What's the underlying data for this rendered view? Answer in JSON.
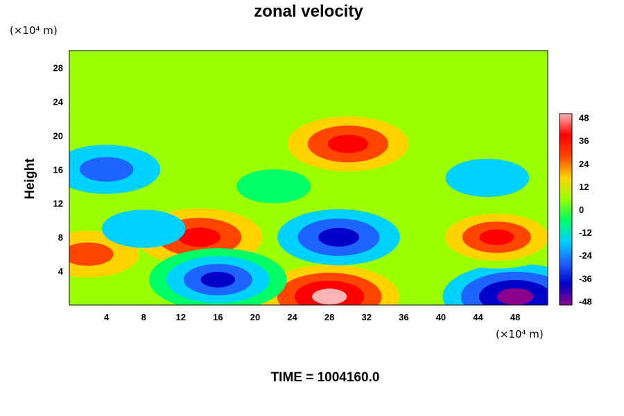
{
  "chart_data": {
    "type": "heatmap",
    "title": "zonal velocity",
    "ylabel": "Height",
    "xlabel": "",
    "x_unit": "(×10⁴ m)",
    "y_unit": "(×10⁴ m)",
    "xlim": [
      0,
      51.5
    ],
    "ylim": [
      0,
      30
    ],
    "x_ticks": [
      "4",
      "8",
      "12",
      "16",
      "20",
      "24",
      "28",
      "32",
      "36",
      "40",
      "44",
      "48"
    ],
    "y_ticks": [
      "4",
      "8",
      "12",
      "16",
      "20",
      "24",
      "28"
    ],
    "colorbar": {
      "range": [
        -50,
        50
      ],
      "ticks": [
        "48",
        "36",
        "24",
        "12",
        "0",
        "-12",
        "-24",
        "-36",
        "-48"
      ],
      "colors": [
        "#8b008b",
        "#0000c8",
        "#1e64ff",
        "#00d2ff",
        "#00ff64",
        "#9bff00",
        "#ffd200",
        "#ff4600",
        "#ff0000",
        "#ffb4b4"
      ]
    },
    "features": [
      {
        "x": 48,
        "y": 1,
        "value": -48
      },
      {
        "x": 28,
        "y": 1,
        "value": 45
      },
      {
        "x": 46,
        "y": 8,
        "value": 44
      },
      {
        "x": 14,
        "y": 8,
        "value": 38
      },
      {
        "x": 2,
        "y": 6,
        "value": 25
      },
      {
        "x": 29,
        "y": 8,
        "value": -36
      },
      {
        "x": 16,
        "y": 3,
        "value": -44
      },
      {
        "x": 30,
        "y": 19,
        "value": 35
      },
      {
        "x": 4,
        "y": 16,
        "value": -28
      },
      {
        "x": 22,
        "y": 14,
        "value": -10
      },
      {
        "x": 45,
        "y": 15,
        "value": -15
      },
      {
        "x": 8,
        "y": 9,
        "value": -15
      },
      {
        "x": 24,
        "y": 27,
        "value": 0
      }
    ]
  },
  "footer": {
    "time_label": "TIME = 1004160.0"
  }
}
